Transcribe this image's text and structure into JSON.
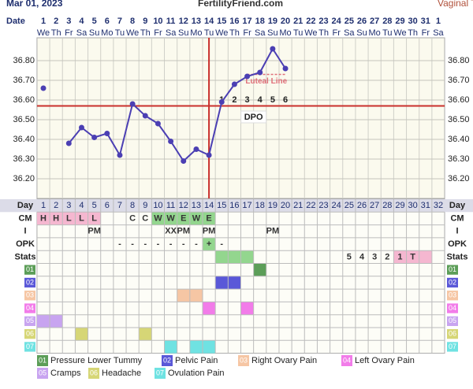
{
  "header": {
    "date": "Mar 01, 2023",
    "site": "FertilityFriend.com",
    "temp_type": "Vaginal Tem"
  },
  "chart_data": {
    "type": "line",
    "x_label": "Date",
    "categories": [
      1,
      2,
      3,
      4,
      5,
      6,
      7,
      8,
      9,
      10,
      11,
      12,
      13,
      14,
      15,
      16,
      17,
      18,
      19,
      20,
      21,
      22,
      23,
      24,
      25,
      26,
      27,
      28,
      29,
      30,
      31,
      1
    ],
    "weekdays": [
      "We",
      "Th",
      "Fr",
      "Sa",
      "Su",
      "Mo",
      "Tu",
      "We",
      "Th",
      "Fr",
      "Sa",
      "Su",
      "Mo",
      "Tu",
      "We",
      "Th",
      "Fr",
      "Sa",
      "Su",
      "Mo",
      "Tu",
      "We",
      "Th",
      "Fr",
      "Sa",
      "Su",
      "Mo",
      "Tu",
      "We",
      "Th",
      "Fr",
      "Sa"
    ],
    "values": [
      36.66,
      null,
      36.38,
      36.46,
      36.41,
      36.43,
      36.32,
      36.58,
      36.52,
      36.48,
      36.39,
      36.29,
      36.35,
      36.32,
      36.59,
      36.68,
      36.72,
      36.74,
      36.86,
      36.76,
      null,
      null,
      null,
      null,
      null,
      null,
      null,
      null,
      null,
      null,
      null,
      null
    ],
    "color": "#4b3fb3",
    "ylim": [
      36.1,
      36.9
    ],
    "yticks": [
      {
        "value": 36.2,
        "label": "36.20"
      },
      {
        "value": 36.3,
        "label": "36.30"
      },
      {
        "value": 36.4,
        "label": "36.40"
      },
      {
        "value": 36.5,
        "label": "36.50"
      },
      {
        "value": 36.6,
        "label": "36.60"
      },
      {
        "value": 36.7,
        "label": "36.70"
      },
      {
        "value": 36.8,
        "label": "36.80"
      }
    ],
    "grid": true,
    "coverline": 36.57,
    "coverline_color": "#c9302c",
    "ovulation_day": 14,
    "dpo": [
      null,
      null,
      null,
      null,
      null,
      null,
      null,
      null,
      null,
      null,
      null,
      null,
      null,
      null,
      1,
      2,
      3,
      4,
      5,
      6,
      null,
      null,
      null,
      null,
      null,
      null,
      null,
      null,
      null,
      null,
      null,
      null
    ],
    "dpo_label": "DPO",
    "luteal_line": {
      "label": "Luteal Line",
      "value": 36.73,
      "days": [
        17,
        20
      ],
      "color": "#e0707a"
    }
  },
  "table": {
    "rows": [
      {
        "label": "Day",
        "cells": [
          1,
          2,
          3,
          4,
          5,
          6,
          7,
          8,
          9,
          10,
          11,
          12,
          13,
          14,
          15,
          16,
          17,
          18,
          19,
          20,
          21,
          22,
          23,
          24,
          25,
          26,
          27,
          28,
          29,
          30,
          31,
          32
        ]
      },
      {
        "label": "CM",
        "cells": [
          "H",
          "H",
          "L",
          "L",
          "L",
          null,
          null,
          "C",
          "C",
          "W",
          "W",
          "E",
          "W",
          "E",
          null,
          null,
          null,
          null,
          null,
          null,
          null,
          null,
          null,
          null,
          null,
          null,
          null,
          null,
          null,
          null,
          null,
          null
        ],
        "highlights": [
          {
            "days": [
              1,
              2,
              3,
              4,
              5
            ],
            "color": "#f5b7d0"
          },
          {
            "days": [
              10,
              11,
              12,
              13,
              14
            ],
            "color": "#93d68e"
          }
        ]
      },
      {
        "label": "I",
        "cells": [
          null,
          null,
          null,
          null,
          "PM",
          null,
          null,
          null,
          null,
          null,
          "XX",
          "PM",
          null,
          "PM",
          null,
          null,
          null,
          null,
          "PM",
          null,
          null,
          null,
          null,
          null,
          null,
          null,
          null,
          null,
          null,
          null,
          null,
          null
        ]
      },
      {
        "label": "OPK",
        "cells": [
          null,
          null,
          null,
          null,
          null,
          null,
          "-",
          "-",
          "-",
          "-",
          "-",
          "-",
          "-",
          "+",
          "-",
          null,
          null,
          null,
          null,
          null,
          null,
          null,
          null,
          null,
          null,
          null,
          null,
          null,
          null,
          null,
          null,
          null
        ],
        "highlights": [
          {
            "days": [
              14
            ],
            "color": "#93d68e"
          }
        ]
      },
      {
        "label": "Stats",
        "cells": [
          null,
          null,
          null,
          null,
          null,
          null,
          null,
          null,
          null,
          null,
          null,
          null,
          null,
          null,
          null,
          null,
          null,
          null,
          null,
          null,
          null,
          null,
          null,
          null,
          5,
          4,
          3,
          2,
          1,
          "T",
          null,
          null
        ],
        "highlights": [
          {
            "days": [
              15,
              16,
              17
            ],
            "color": "#93d68e"
          },
          {
            "days": [
              29,
              30,
              31
            ],
            "color": "#f5b7d0"
          }
        ]
      }
    ]
  },
  "symptoms": [
    {
      "code": "01",
      "label": "Pressure Lower Tummy",
      "color": "#5c9e58",
      "days": [
        18
      ]
    },
    {
      "code": "02",
      "label": "Pelvic Pain",
      "color": "#5a58d8",
      "days": [
        15,
        16
      ]
    },
    {
      "code": "03",
      "label": "Right Ovary Pain",
      "color": "#f6c6a4",
      "days": [
        12,
        13
      ]
    },
    {
      "code": "04",
      "label": "Left Ovary Pain",
      "color": "#f27ce9",
      "days": [
        14,
        17
      ]
    },
    {
      "code": "05",
      "label": "Cramps",
      "color": "#c8a4f0",
      "days": [
        1,
        2
      ]
    },
    {
      "code": "06",
      "label": "Headache",
      "color": "#d6d676",
      "days": [
        4,
        9
      ]
    },
    {
      "code": "07",
      "label": "Ovulation Pain",
      "color": "#6fe2e2",
      "days": [
        11,
        13,
        14
      ]
    }
  ]
}
